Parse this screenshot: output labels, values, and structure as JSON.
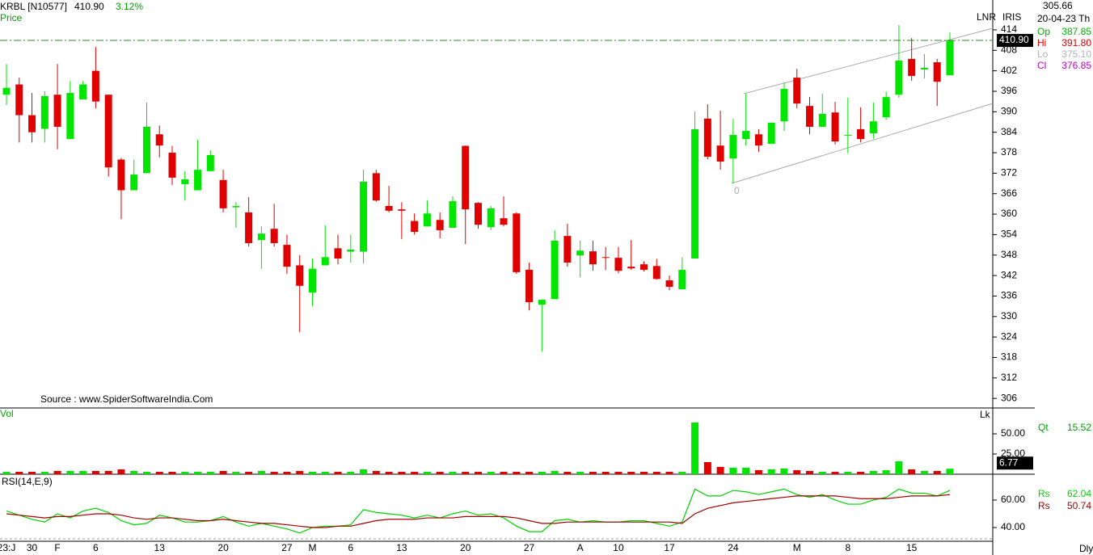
{
  "chart_data": [
    {
      "type": "candlestick",
      "title": "KRBL [N10577]",
      "price": "410.90",
      "change": "3.12%",
      "label": "Price",
      "source": "Source : www.SpiderSoftwareIndia.Com",
      "scale": "LNR",
      "indicator": "IRIS",
      "cursor_value": "305.66",
      "cursor_date": "20-04-23 Th",
      "timeframe": "Dly",
      "channel_label": "0",
      "readout": [
        {
          "name": "Op",
          "value": "387.85",
          "color": "#00b000"
        },
        {
          "name": "Hi",
          "value": "391.80",
          "color": "#e00000"
        },
        {
          "name": "Lo",
          "value": "375.10",
          "color": "#b0b0b0"
        },
        {
          "name": "Cl",
          "value": "376.85",
          "color": "#c000c0"
        }
      ],
      "categories": [
        "23:J",
        null,
        "30",
        null,
        "F",
        null,
        null,
        "6",
        null,
        null,
        null,
        null,
        "13",
        null,
        null,
        null,
        null,
        "20",
        null,
        null,
        null,
        null,
        "27",
        null,
        "M",
        null,
        null,
        "6",
        null,
        null,
        null,
        "13",
        null,
        null,
        null,
        null,
        "20",
        null,
        null,
        null,
        null,
        "27",
        null,
        null,
        null,
        "A",
        null,
        null,
        "10",
        null,
        null,
        null,
        "17",
        null,
        null,
        null,
        null,
        "24",
        null,
        null,
        null,
        null,
        "M",
        null,
        null,
        null,
        "8",
        null,
        null,
        null,
        null,
        "15",
        null,
        null,
        null
      ],
      "open": [
        395,
        398,
        389,
        385,
        395,
        382,
        393.6,
        402,
        395,
        376,
        367,
        372,
        383.4,
        378,
        368.8,
        367,
        372.6,
        370,
        362,
        360.5,
        352.4,
        355.7,
        351,
        345,
        337,
        345,
        350,
        349,
        349,
        372,
        362.4,
        361.4,
        358,
        356.4,
        358.3,
        356,
        380,
        363.3,
        356.2,
        358.8,
        360.2,
        343.7,
        333.5,
        335.1,
        353.6,
        347.9,
        349.1,
        347.4,
        347.2,
        344.6,
        345.3,
        344.8,
        340.6,
        338,
        347,
        388,
        380.1,
        376.3,
        382,
        383.4,
        380.6,
        387.2,
        400,
        391.7,
        385.6,
        389.8,
        383,
        384.9,
        383.7,
        388.4,
        395,
        405.5,
        402.4,
        404.5,
        400.7
      ],
      "high": [
        404,
        400,
        395.5,
        396,
        404,
        399,
        399,
        409,
        395,
        376.5,
        376,
        392.7,
        386,
        380,
        372.6,
        381.8,
        378.7,
        373,
        363.5,
        365,
        356.4,
        363,
        354,
        348,
        347,
        356.7,
        354,
        354,
        373,
        373,
        368.3,
        363.5,
        360.2,
        364,
        360.5,
        365.2,
        380.1,
        363.5,
        362.4,
        365.2,
        360.5,
        345.8,
        335,
        355.3,
        357.2,
        352.2,
        352.2,
        350.4,
        350.4,
        352.4,
        346.2,
        346.9,
        342,
        347.4,
        390.1,
        392.2,
        390.3,
        387.9,
        395.3,
        384.9,
        386.8,
        398.6,
        402.6,
        394.3,
        395.3,
        392.9,
        394.1,
        391.3,
        392.7,
        395.9,
        415.4,
        411.6,
        406.9,
        405.5,
        413.3
      ],
      "low": [
        392,
        381,
        381,
        381,
        379,
        382,
        393.6,
        391,
        371,
        358.5,
        367,
        372,
        376.6,
        368.5,
        364,
        367,
        372.6,
        360.5,
        356,
        350.5,
        344,
        350.5,
        342.5,
        325.4,
        333,
        345,
        345.3,
        345.8,
        345.5,
        363.6,
        360.5,
        352.7,
        354,
        356.4,
        352.9,
        356,
        351.2,
        355.7,
        355.3,
        356.4,
        342.5,
        331.8,
        319.7,
        335.1,
        344.6,
        341.5,
        343.4,
        343.6,
        342.7,
        343.7,
        343.2,
        340.8,
        337.7,
        338,
        347,
        376.1,
        373,
        369,
        380.1,
        378.2,
        380.6,
        384.4,
        391,
        383.4,
        385.6,
        380.4,
        377.8,
        381,
        382,
        387.6,
        394.1,
        399.1,
        399.8,
        391.7,
        400.7
      ],
      "close": [
        397,
        389,
        384,
        394.6,
        385.6,
        395.5,
        398,
        393,
        373.7,
        367,
        371.6,
        385.6,
        380.1,
        370.7,
        370.2,
        373,
        377.3,
        361.7,
        362.4,
        351.5,
        354.3,
        351.5,
        344.6,
        339,
        344,
        347.4,
        347,
        349.6,
        369.5,
        364,
        361,
        361,
        354.8,
        360.2,
        355.3,
        363.8,
        361.4,
        356.9,
        361.7,
        356.9,
        343,
        334.2,
        334.9,
        352.2,
        345.8,
        349.3,
        345.3,
        347.2,
        343.4,
        344.1,
        343.7,
        341,
        338.7,
        343.7,
        384.9,
        376.8,
        375.4,
        383.2,
        384.4,
        380.1,
        386.8,
        396.7,
        392.4,
        385.6,
        389.4,
        381.3,
        383.2,
        382,
        387.2,
        394.3,
        405,
        400.5,
        402.9,
        398.8,
        410.9
      ],
      "up_color": "#00e600",
      "down_color": "#e00000",
      "last_price": {
        "value": 410.9,
        "label": "410.90"
      },
      "ylim": [
        303.2,
        419.2
      ],
      "yticks": [
        306,
        312,
        318,
        324,
        330,
        336,
        342,
        348,
        354,
        360,
        366,
        372,
        378,
        384,
        390,
        396,
        402,
        408,
        414
      ]
    },
    {
      "type": "bar",
      "label": "Vol",
      "unit": "Lk",
      "readout": {
        "name": "Qt",
        "value": "15.52"
      },
      "values": [
        3,
        3,
        3,
        3,
        4,
        4,
        4,
        4,
        4,
        6,
        4,
        3,
        3,
        3,
        3,
        3,
        3,
        4,
        3,
        3,
        4,
        3,
        3,
        4,
        3,
        3,
        3,
        3,
        6,
        4,
        3,
        3,
        3,
        3,
        3,
        3,
        3,
        3,
        3,
        3,
        3,
        3,
        3,
        4,
        3,
        3,
        3,
        3,
        3,
        3,
        3,
        3,
        3,
        3,
        64,
        15,
        9,
        8,
        8,
        5,
        6,
        7,
        5,
        4,
        3,
        3,
        3,
        3,
        4,
        5,
        16,
        6,
        4,
        4,
        6.77
      ],
      "ylim": [
        0,
        82
      ],
      "yticks": [
        {
          "value": 25,
          "label": "25.00"
        },
        {
          "value": 50,
          "label": "50.00"
        }
      ]
    },
    {
      "type": "line",
      "label": "RSI(14,E,9)",
      "series": [
        {
          "name": "Rs",
          "color": "#00d000",
          "readout": "62.04",
          "values": [
            52,
            49,
            46,
            44,
            50,
            47,
            52,
            54,
            51,
            45,
            42,
            43,
            49,
            47,
            44,
            44,
            45,
            48,
            44,
            41,
            43,
            41,
            39,
            36,
            40,
            41,
            41,
            42,
            53,
            51,
            50,
            49,
            47,
            49,
            47,
            50,
            52,
            49,
            50,
            47,
            41,
            37,
            37,
            45,
            46,
            44,
            45,
            44,
            44,
            45,
            45,
            43,
            41,
            44,
            68,
            63,
            63,
            67,
            66,
            64,
            66,
            68,
            64,
            62,
            64,
            60,
            57,
            57,
            60,
            62,
            68,
            65,
            65,
            63,
            67
          ]
        },
        {
          "name": "Rs",
          "color": "#a00000",
          "readout": "50.74",
          "values": [
            50,
            49,
            48,
            47,
            48,
            48,
            49,
            50,
            50,
            49,
            47,
            46,
            47,
            47,
            46,
            45,
            45,
            46,
            45,
            44,
            43,
            43,
            42,
            41,
            40,
            40,
            41,
            41,
            43,
            45,
            46,
            46,
            46,
            47,
            47,
            47,
            48,
            48,
            48,
            48,
            47,
            45,
            43,
            43,
            44,
            44,
            44,
            44,
            44,
            44,
            44,
            44,
            44,
            43,
            50,
            54,
            56,
            58,
            59,
            60,
            61,
            62,
            63,
            63,
            63,
            63,
            62,
            61,
            61,
            61,
            62,
            63,
            63,
            63,
            64
          ]
        }
      ],
      "ylim": [
        30,
        78.8
      ],
      "yticks": [
        {
          "value": 40,
          "label": "40.00"
        },
        {
          "value": 60,
          "label": "60.00"
        }
      ]
    }
  ]
}
